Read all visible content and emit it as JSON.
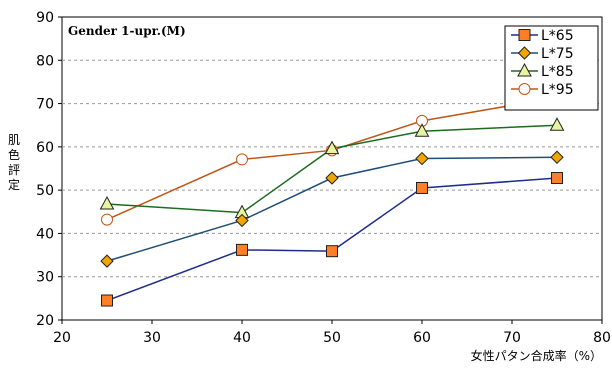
{
  "chart_data": {
    "type": "line",
    "title": "Gender 1-upr.(M)",
    "xlabel": "女性パタン合成率（%）",
    "ylabel": "肌色評定",
    "xlim": [
      20,
      80
    ],
    "ylim": [
      20,
      90
    ],
    "xticks": [
      20,
      30,
      40,
      50,
      60,
      70,
      80
    ],
    "yticks": [
      20,
      30,
      40,
      50,
      60,
      70,
      80,
      90
    ],
    "grid": "horizontal-dashed",
    "legend_position": "top-right",
    "x": [
      25,
      40,
      50,
      60,
      75
    ],
    "series": [
      {
        "name": "L*65",
        "values": [
          24.5,
          36.2,
          35.9,
          50.5,
          52.8
        ],
        "color": "#1f2d8a",
        "marker": "square",
        "marker_fill": "#ff7f27"
      },
      {
        "name": "L*75",
        "values": [
          33.6,
          43.0,
          52.8,
          57.3,
          57.6
        ],
        "color": "#1f4e79",
        "marker": "diamond",
        "marker_fill": "#f0a500"
      },
      {
        "name": "L*85",
        "values": [
          46.8,
          44.8,
          59.6,
          63.6,
          65.0
        ],
        "color": "#1e6b1e",
        "marker": "triangle",
        "marker_fill": "#e8f5a0"
      },
      {
        "name": "L*95",
        "values": [
          43.2,
          57.1,
          59.2,
          66.0,
          71.4
        ],
        "color": "#c0561a",
        "marker": "circle",
        "marker_fill": "#ffffff"
      }
    ]
  }
}
